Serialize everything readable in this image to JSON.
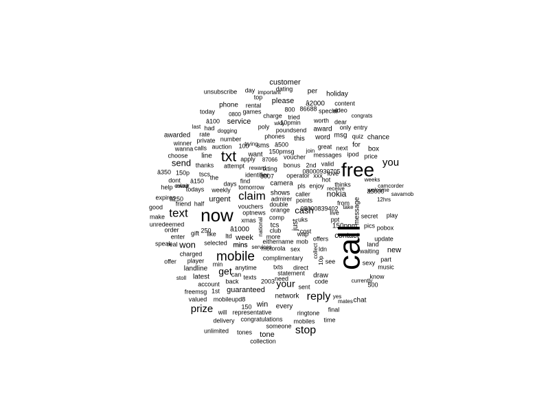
{
  "word_cloud": {
    "color": "#000000",
    "words": [
      {
        "text": "call",
        "rot": true
      },
      {
        "text": "free"
      },
      {
        "text": "now"
      },
      {
        "text": "txt"
      },
      {
        "text": "mobile"
      },
      {
        "text": "text"
      },
      {
        "text": "claim"
      },
      {
        "text": "reply"
      },
      {
        "text": "stop"
      },
      {
        "text": "you"
      },
      {
        "text": "prize"
      },
      {
        "text": "get"
      },
      {
        "text": "your"
      },
      {
        "text": "won"
      },
      {
        "text": "send"
      },
      {
        "text": "cash"
      },
      {
        "text": "nokia"
      },
      {
        "text": "customer"
      },
      {
        "text": "please"
      },
      {
        "text": "service"
      },
      {
        "text": "urgent"
      },
      {
        "text": "guaranteed"
      },
      {
        "text": "week"
      },
      {
        "text": "win"
      },
      {
        "text": "contact"
      },
      {
        "text": "new"
      },
      {
        "text": "tone"
      },
      {
        "text": "just",
        "rot": true
      },
      {
        "text": "phone"
      },
      {
        "text": "â2000"
      },
      {
        "text": "awarded"
      },
      {
        "text": "line"
      },
      {
        "text": "â1000"
      },
      {
        "text": "150ppm"
      },
      {
        "text": "mins"
      },
      {
        "text": "message",
        "rot": true
      },
      {
        "text": "draw"
      },
      {
        "text": "latest"
      },
      {
        "text": "landline"
      },
      {
        "text": "shows"
      },
      {
        "text": "camera"
      },
      {
        "text": "tcs"
      },
      {
        "text": "chat"
      },
      {
        "text": "this"
      },
      {
        "text": "word"
      },
      {
        "text": "award"
      },
      {
        "text": "msg"
      },
      {
        "text": "for"
      },
      {
        "text": "box"
      },
      {
        "text": "chance"
      },
      {
        "text": "holiday"
      },
      {
        "text": "per"
      },
      {
        "text": "want"
      },
      {
        "text": "sms"
      },
      {
        "text": "every"
      },
      {
        "text": "network"
      },
      {
        "text": "final"
      },
      {
        "text": "ringtone"
      },
      {
        "text": "code"
      },
      {
        "text": "150p"
      },
      {
        "text": "â150"
      },
      {
        "text": "â250"
      },
      {
        "text": "â350"
      },
      {
        "text": "â500"
      },
      {
        "text": "â5000"
      },
      {
        "text": "â100"
      },
      {
        "text": "weekly"
      },
      {
        "text": "attempt"
      },
      {
        "text": "apply"
      },
      {
        "text": "auction"
      },
      {
        "text": "number"
      },
      {
        "text": "private"
      },
      {
        "text": "winner"
      },
      {
        "text": "wanna"
      },
      {
        "text": "calls"
      },
      {
        "text": "thanks"
      },
      {
        "text": "tscs"
      },
      {
        "text": "the"
      },
      {
        "text": "days"
      },
      {
        "text": "find"
      },
      {
        "text": "tomorrow"
      },
      {
        "text": "8007"
      },
      {
        "text": "87066"
      },
      {
        "text": "txting"
      },
      {
        "text": "voucher"
      },
      {
        "text": "bonus"
      },
      {
        "text": "2nd"
      },
      {
        "text": "valid"
      },
      {
        "text": "08000930705"
      },
      {
        "text": "operator"
      },
      {
        "text": "xxx"
      },
      {
        "text": "hot"
      },
      {
        "text": "enjoy"
      },
      {
        "text": "thinks"
      },
      {
        "text": "caller"
      },
      {
        "text": "points"
      },
      {
        "text": "admirer"
      },
      {
        "text": "double"
      },
      {
        "text": "orange"
      },
      {
        "text": "comp"
      },
      {
        "text": "vouchers"
      },
      {
        "text": "optnews"
      },
      {
        "text": "xmas"
      },
      {
        "text": "national",
        "rot": true
      },
      {
        "text": "club"
      },
      {
        "text": "more"
      },
      {
        "text": "cost"
      },
      {
        "text": "wap"
      },
      {
        "text": "eithername"
      },
      {
        "text": "mob"
      },
      {
        "text": "sex"
      },
      {
        "text": "offers"
      },
      {
        "text": "ldn"
      },
      {
        "text": "10p",
        "rot": true
      },
      {
        "text": "collect",
        "rot": true
      },
      {
        "text": "see"
      },
      {
        "text": "motorola"
      },
      {
        "text": "services"
      },
      {
        "text": "complimentary"
      },
      {
        "text": "txts"
      },
      {
        "text": "direct"
      },
      {
        "text": "statement"
      },
      {
        "text": "anytime"
      },
      {
        "text": "can"
      },
      {
        "text": "texts"
      },
      {
        "text": "back"
      },
      {
        "text": "2003"
      },
      {
        "text": "need"
      },
      {
        "text": "sent"
      },
      {
        "text": "1st"
      },
      {
        "text": "account"
      },
      {
        "text": "min"
      },
      {
        "text": "player"
      },
      {
        "text": "charged"
      },
      {
        "text": "offer"
      },
      {
        "text": "real"
      },
      {
        "text": "speak"
      },
      {
        "text": "order"
      },
      {
        "text": "enter"
      },
      {
        "text": "gift"
      },
      {
        "text": "like"
      },
      {
        "text": "ltd"
      },
      {
        "text": "selected"
      },
      {
        "text": "unredeemed"
      },
      {
        "text": "make"
      },
      {
        "text": "good"
      },
      {
        "text": "expires"
      },
      {
        "text": "help"
      },
      {
        "text": "dont"
      },
      {
        "text": "todays"
      },
      {
        "text": "friend"
      },
      {
        "text": "half"
      },
      {
        "text": "await"
      },
      {
        "text": "choose"
      },
      {
        "text": "mobileupd8"
      },
      {
        "text": "valued"
      },
      {
        "text": "freemsg"
      },
      {
        "text": "will"
      },
      {
        "text": "representative"
      },
      {
        "text": "150"
      },
      {
        "text": "delivery"
      },
      {
        "text": "congratulations"
      },
      {
        "text": "someone"
      },
      {
        "text": "mobiles"
      },
      {
        "text": "time"
      },
      {
        "text": "tones"
      },
      {
        "text": "unlimited"
      },
      {
        "text": "collection"
      },
      {
        "text": "mates"
      },
      {
        "text": "yes"
      },
      {
        "text": "currently"
      },
      {
        "text": "500"
      },
      {
        "text": "know"
      },
      {
        "text": "music"
      },
      {
        "text": "sexy"
      },
      {
        "text": "waiting"
      },
      {
        "text": "part"
      },
      {
        "text": "land"
      },
      {
        "text": "update"
      },
      {
        "text": "pobox"
      },
      {
        "text": "pics"
      },
      {
        "text": "secret"
      },
      {
        "text": "play"
      },
      {
        "text": "savamob"
      },
      {
        "text": "camcorder"
      },
      {
        "text": "12hrs"
      },
      {
        "text": "weeks"
      },
      {
        "text": "welcome"
      },
      {
        "text": "take"
      },
      {
        "text": "live"
      },
      {
        "text": "ppt"
      },
      {
        "text": "from"
      },
      {
        "text": "receive"
      },
      {
        "text": "love"
      },
      {
        "text": "ipod"
      },
      {
        "text": "price"
      },
      {
        "text": "next"
      },
      {
        "text": "quiz"
      },
      {
        "text": "great"
      },
      {
        "text": "messages"
      },
      {
        "text": "join"
      },
      {
        "text": "only"
      },
      {
        "text": "entry"
      },
      {
        "text": "dear"
      },
      {
        "text": "worth"
      },
      {
        "text": "congrats"
      },
      {
        "text": "content"
      },
      {
        "text": "video"
      },
      {
        "text": "special"
      },
      {
        "text": "poundsend"
      },
      {
        "text": "10pmin"
      },
      {
        "text": "tried"
      },
      {
        "text": "charge"
      },
      {
        "text": "800"
      },
      {
        "text": "wkly"
      },
      {
        "text": "phones"
      },
      {
        "text": "poly"
      },
      {
        "text": "games"
      },
      {
        "text": "0800"
      },
      {
        "text": "dogging"
      },
      {
        "text": "had"
      },
      {
        "text": "rate"
      },
      {
        "text": "last"
      },
      {
        "text": "today"
      },
      {
        "text": "rental"
      },
      {
        "text": "top"
      },
      {
        "text": "day"
      },
      {
        "text": "unsubscribe"
      },
      {
        "text": "dating"
      },
      {
        "text": "important"
      },
      {
        "text": "identifier"
      },
      {
        "text": "150pmsg"
      },
      {
        "text": "trying"
      },
      {
        "text": "reward"
      },
      {
        "text": "pls"
      },
      {
        "text": "uks"
      },
      {
        "text": "colour"
      },
      {
        "text": "stoll"
      },
      {
        "text": "mins"
      },
      {
        "text": "08000839402"
      },
      {
        "text": "86688"
      },
      {
        "text": "100"
      },
      {
        "text": "250"
      }
    ]
  }
}
